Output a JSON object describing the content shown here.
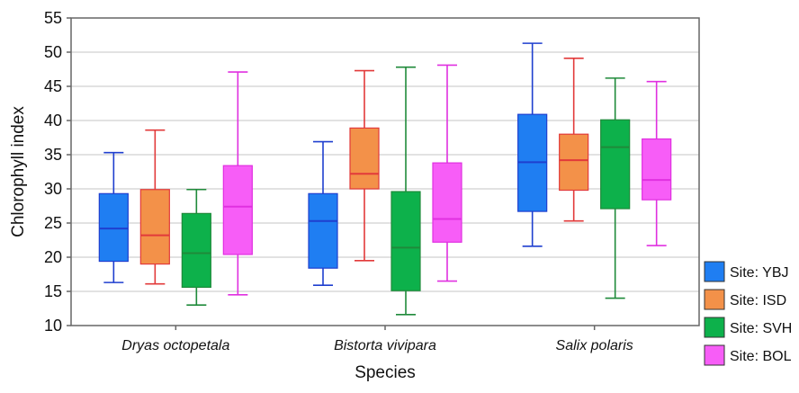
{
  "chart_data": {
    "type": "box",
    "title": "",
    "xlabel": "Species",
    "ylabel": "Chlorophyll index",
    "ylim": [
      10,
      55
    ],
    "yticks": [
      10,
      15,
      20,
      25,
      30,
      35,
      40,
      45,
      50,
      55
    ],
    "grid": "horizontal",
    "legend_position": "right",
    "categories": [
      "Dryas octopetala",
      "Bistorta vivipara",
      "Salix polaris"
    ],
    "series": [
      {
        "name": "Site: YBJ",
        "color": "#1f7ef2",
        "edge": "#1f3fcf",
        "boxes": [
          {
            "min": 16.3,
            "q1": 19.4,
            "median": 24.2,
            "q3": 29.3,
            "max": 35.3
          },
          {
            "min": 15.9,
            "q1": 18.4,
            "median": 25.3,
            "q3": 29.3,
            "max": 36.9
          },
          {
            "min": 21.6,
            "q1": 26.7,
            "median": 33.9,
            "q3": 40.9,
            "max": 51.3
          }
        ]
      },
      {
        "name": "Site: ISD",
        "color": "#f39149",
        "edge": "#e23a3a",
        "boxes": [
          {
            "min": 16.1,
            "q1": 19.0,
            "median": 23.2,
            "q3": 29.9,
            "max": 38.6
          },
          {
            "min": 19.5,
            "q1": 30.0,
            "median": 32.2,
            "q3": 38.9,
            "max": 47.3
          },
          {
            "min": 25.3,
            "q1": 29.8,
            "median": 34.2,
            "q3": 38.0,
            "max": 49.1
          }
        ]
      },
      {
        "name": "Site: SVH",
        "color": "#0db14b",
        "edge": "#1f8a3a",
        "boxes": [
          {
            "min": 13.0,
            "q1": 15.6,
            "median": 20.6,
            "q3": 26.4,
            "max": 29.9
          },
          {
            "min": 11.6,
            "q1": 15.1,
            "median": 21.4,
            "q3": 29.6,
            "max": 47.8
          },
          {
            "min": 14.0,
            "q1": 27.1,
            "median": 36.1,
            "q3": 40.1,
            "max": 46.2
          }
        ]
      },
      {
        "name": "Site: BOL",
        "color": "#f75df7",
        "edge": "#e030e0",
        "boxes": [
          {
            "min": 14.5,
            "q1": 20.4,
            "median": 27.4,
            "q3": 33.4,
            "max": 47.1
          },
          {
            "min": 16.5,
            "q1": 22.2,
            "median": 25.6,
            "q3": 33.8,
            "max": 48.1
          },
          {
            "min": 21.7,
            "q1": 28.4,
            "median": 31.3,
            "q3": 37.3,
            "max": 45.7
          }
        ]
      }
    ],
    "style": {
      "plot_border": "#666666",
      "grid_color": "#d9d9d9",
      "median_color_by_series": [
        "#1f3fcf",
        "#e23a3a",
        "#1f8a3a",
        "#e030e0"
      ]
    }
  }
}
